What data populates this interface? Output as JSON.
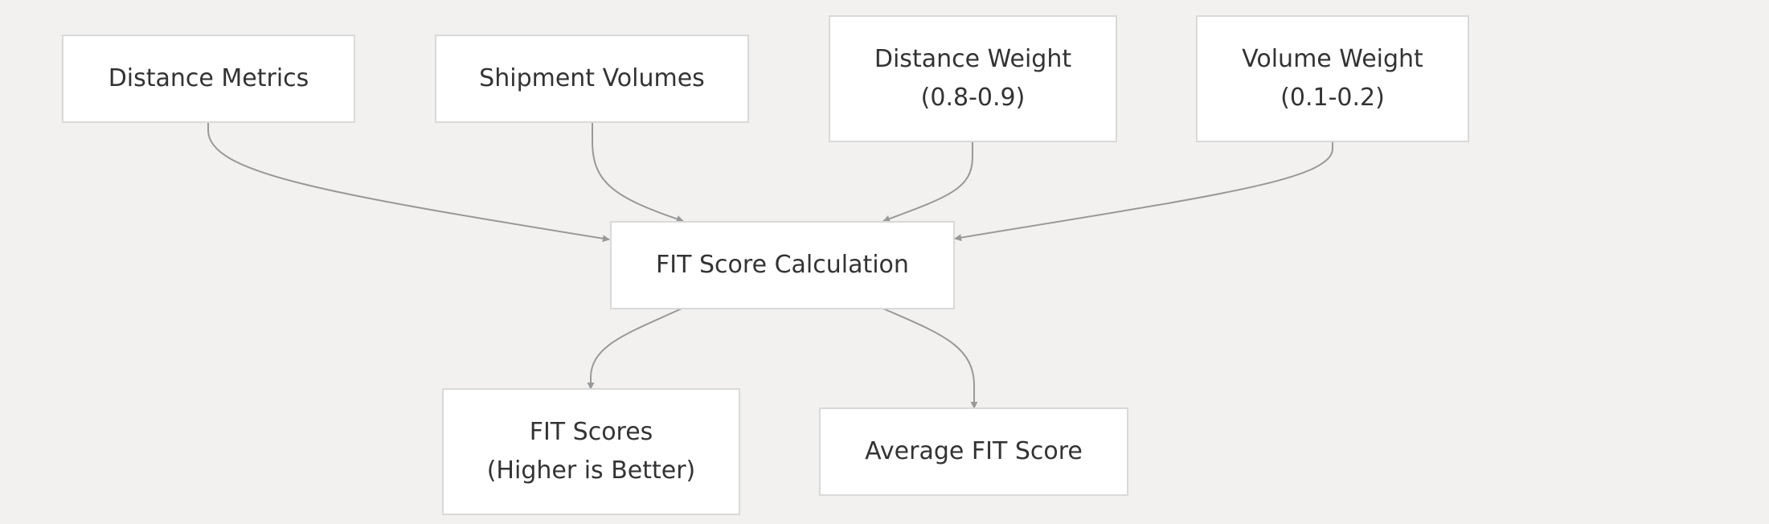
{
  "diagram": {
    "nodes": {
      "distance_metrics": {
        "lines": [
          "Distance Metrics"
        ]
      },
      "shipment_volumes": {
        "lines": [
          "Shipment Volumes"
        ]
      },
      "distance_weight": {
        "lines": [
          "Distance Weight",
          "(0.8-0.9)"
        ]
      },
      "volume_weight": {
        "lines": [
          "Volume Weight",
          "(0.1-0.2)"
        ]
      },
      "fit_calc": {
        "lines": [
          "FIT Score Calculation"
        ]
      },
      "fit_scores": {
        "lines": [
          "FIT Scores",
          "(Higher is Better)"
        ]
      },
      "avg_fit": {
        "lines": [
          "Average FIT Score"
        ]
      }
    },
    "edges": [
      {
        "from": "distance_metrics",
        "to": "fit_calc"
      },
      {
        "from": "shipment_volumes",
        "to": "fit_calc"
      },
      {
        "from": "distance_weight",
        "to": "fit_calc"
      },
      {
        "from": "volume_weight",
        "to": "fit_calc"
      },
      {
        "from": "fit_calc",
        "to": "fit_scores"
      },
      {
        "from": "fit_calc",
        "to": "avg_fit"
      }
    ],
    "colors": {
      "background": "#f2f1ef",
      "node_fill": "#ffffff",
      "node_border": "#d9d9d9",
      "edge": "#999999",
      "text": "#333333"
    }
  }
}
